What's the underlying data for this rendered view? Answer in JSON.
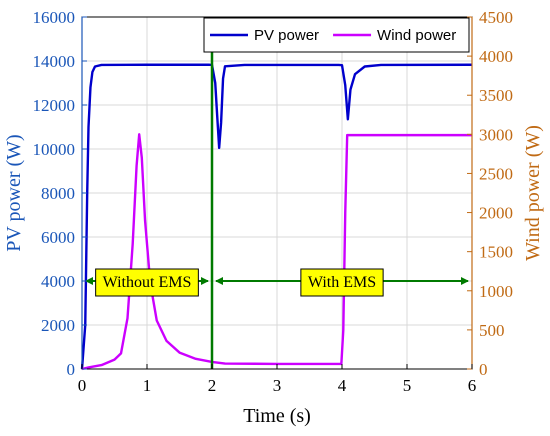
{
  "chart_data": {
    "type": "line",
    "xlabel": "Time (s)",
    "ylabel_left": "PV power (W)",
    "ylabel_right": "Wind power (W)",
    "xlim": [
      0,
      6
    ],
    "ylim_left": [
      0,
      16000
    ],
    "ylim_right": [
      0,
      4500
    ],
    "x_ticks": [
      "0",
      "1",
      "2",
      "3",
      "4",
      "5",
      "6"
    ],
    "y_ticks_left": [
      "0",
      "2000",
      "4000",
      "6000",
      "8000",
      "10000",
      "12000",
      "14000",
      "16000"
    ],
    "y_ticks_right": [
      "0",
      "500",
      "1000",
      "1500",
      "2000",
      "2500",
      "3000",
      "3500",
      "4000",
      "4500"
    ],
    "grid": true,
    "legend_position": "top-right",
    "series": [
      {
        "name": "PV power",
        "axis": "left",
        "color": "#0000cc",
        "points": [
          [
            0.0,
            0
          ],
          [
            0.05,
            2000
          ],
          [
            0.08,
            8000
          ],
          [
            0.1,
            11000
          ],
          [
            0.13,
            12800
          ],
          [
            0.16,
            13500
          ],
          [
            0.2,
            13750
          ],
          [
            0.3,
            13820
          ],
          [
            1.0,
            13830
          ],
          [
            1.95,
            13830
          ],
          [
            2.0,
            13820
          ],
          [
            2.05,
            13000
          ],
          [
            2.08,
            11500
          ],
          [
            2.11,
            10050
          ],
          [
            2.14,
            11200
          ],
          [
            2.17,
            13200
          ],
          [
            2.2,
            13760
          ],
          [
            2.5,
            13820
          ],
          [
            3.95,
            13820
          ],
          [
            4.0,
            13810
          ],
          [
            4.05,
            12900
          ],
          [
            4.09,
            11350
          ],
          [
            4.13,
            12700
          ],
          [
            4.2,
            13400
          ],
          [
            4.35,
            13750
          ],
          [
            4.6,
            13820
          ],
          [
            6.0,
            13830
          ]
        ]
      },
      {
        "name": "Wind power",
        "axis": "right",
        "color": "#cc00ff",
        "points": [
          [
            0.0,
            0
          ],
          [
            0.1,
            20
          ],
          [
            0.3,
            50
          ],
          [
            0.5,
            120
          ],
          [
            0.6,
            200
          ],
          [
            0.7,
            650
          ],
          [
            0.78,
            1600
          ],
          [
            0.84,
            2600
          ],
          [
            0.88,
            3000
          ],
          [
            0.92,
            2700
          ],
          [
            0.97,
            1900
          ],
          [
            1.05,
            1100
          ],
          [
            1.15,
            620
          ],
          [
            1.3,
            360
          ],
          [
            1.5,
            210
          ],
          [
            1.75,
            130
          ],
          [
            2.0,
            90
          ],
          [
            2.2,
            70
          ],
          [
            3.0,
            65
          ],
          [
            3.99,
            65
          ],
          [
            4.02,
            500
          ],
          [
            4.05,
            2000
          ],
          [
            4.08,
            2990
          ],
          [
            6.0,
            2990
          ]
        ]
      }
    ],
    "annotations": [
      {
        "text": "Without EMS",
        "x_from": 0.0,
        "x_to": 2.0,
        "y": 4000,
        "color": "#007a00"
      },
      {
        "text": "With EMS",
        "x_from": 2.0,
        "x_to": 6.0,
        "y": 4000,
        "color": "#007a00"
      }
    ],
    "divider_x": 2.0,
    "divider_color": "#007a00",
    "colors": {
      "left_axis": "#1a56b8",
      "right_axis": "#c06a14",
      "annotation_box": "#ffff00"
    }
  }
}
